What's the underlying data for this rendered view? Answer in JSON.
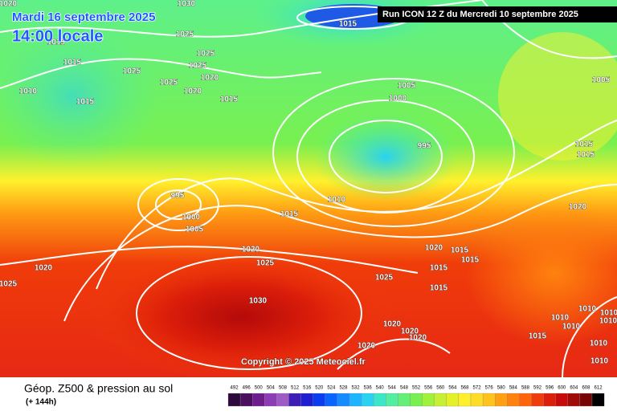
{
  "header": {
    "date": "Mardi 16 septembre 2025",
    "time": "14:00 locale",
    "run": "Run ICON 12 Z du Mercredi 10 septembre 2025"
  },
  "map": {
    "copyright": "Copyright © 2025 Meteociel.fr",
    "isobar_labels": [
      "1020",
      "1030",
      "1015",
      "1025",
      "1015",
      "1025",
      "1015",
      "1025",
      "1025",
      "1020",
      "1025",
      "1010",
      "1020",
      "1015",
      "1015",
      "1005",
      "1000",
      "1005",
      "995",
      "1015",
      "1015",
      "995",
      "1010",
      "1020",
      "1015",
      "1000",
      "1005",
      "1020",
      "1025",
      "1020",
      "1015",
      "1015",
      "1020",
      "1015",
      "1025",
      "1025",
      "1015",
      "1030",
      "1010",
      "1010",
      "1010",
      "1010",
      "1020",
      "1010",
      "1020",
      "1020",
      "1015",
      "1020",
      "1010",
      "1010"
    ]
  },
  "legend": {
    "title": "Géop. Z500 & pression au sol",
    "subtitle": "(+ 144h)",
    "scale": [
      492,
      496,
      500,
      504,
      508,
      512,
      516,
      520,
      524,
      528,
      532,
      536,
      540,
      544,
      548,
      552,
      556,
      560,
      564,
      568,
      572,
      576,
      580,
      584,
      588,
      592,
      596,
      600,
      604,
      608,
      612
    ],
    "colors": [
      "#2d0a3c",
      "#4b0f5f",
      "#6e1e8c",
      "#8c3cb4",
      "#a05ac8",
      "#3c1eb4",
      "#1e1ed2",
      "#0a3cf0",
      "#0a64ff",
      "#148cff",
      "#1eb4ff",
      "#28d2f0",
      "#3ce6c8",
      "#50f0a0",
      "#64f078",
      "#78f050",
      "#a0f03c",
      "#c8f032",
      "#e6f028",
      "#fff02d",
      "#ffdc28",
      "#ffc31e",
      "#ffa014",
      "#ff820f",
      "#ff640a",
      "#f03c0a",
      "#dc1e0a",
      "#c80a0a",
      "#a00a0a",
      "#780505",
      "#000000"
    ]
  }
}
